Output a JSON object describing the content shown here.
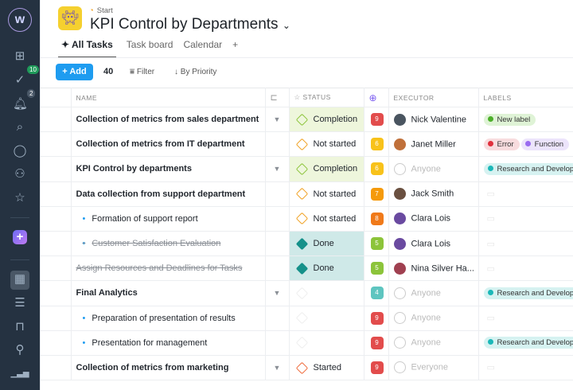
{
  "sidebar": {
    "logo": "w",
    "badges": {
      "tasks": "10",
      "notifications": "2"
    },
    "items": [
      "apps-icon",
      "tasks-icon",
      "bell-icon",
      "search-icon",
      "chat-icon",
      "users-icon",
      "star-icon",
      "plus-icon",
      "table-view-icon",
      "list-view-icon",
      "board-view-icon",
      "team-icon",
      "reports-icon"
    ]
  },
  "header": {
    "breadcrumb": "Start",
    "title": "KPI Control by Departments"
  },
  "tabs": [
    "All Tasks",
    "Task board",
    "Calendar",
    "+"
  ],
  "toolbar": {
    "add": "Add",
    "count": "40",
    "filter": "Filter",
    "sort": "By Priority"
  },
  "columns": {
    "name": "NAME",
    "status": "STATUS",
    "executor": "EXECUTOR",
    "labels": "LABELS"
  },
  "colors": {
    "accent": "#1e9cf0",
    "sidebar": "#253241"
  },
  "rows": [
    {
      "name": "Collection of metrics from sales department",
      "type": "parent",
      "expand": true,
      "status": "Completion",
      "priority": "9",
      "executor": "Nick Valentine",
      "labels": [
        {
          "text": "New label",
          "color": "#4caf2a",
          "bg": "#dff3d6"
        }
      ]
    },
    {
      "name": "Collection of metrics from IT department",
      "type": "parent",
      "status": "Not started",
      "priority": "6",
      "executor": "Janet Miller",
      "labels": [
        {
          "text": "Error",
          "color": "#e0303c",
          "bg": "#f8dcde"
        },
        {
          "text": "Function",
          "color": "#9a6cf0",
          "bg": "#ece4fb"
        }
      ]
    },
    {
      "name": "KPI Control by departments",
      "type": "parent",
      "expand": true,
      "status": "Completion",
      "priority": "6",
      "executor": "Anyone",
      "labels": [
        {
          "text": "Research and Development",
          "color": "#1bb8b8",
          "bg": "#d6f2f1"
        }
      ]
    },
    {
      "name": "Data collection from support department",
      "type": "parent",
      "status": "Not started",
      "priority": "7",
      "executor": "Jack Smith",
      "labels": []
    },
    {
      "name": "Formation of support report",
      "type": "sub",
      "status": "Not started",
      "priority": "8",
      "executor": "Clara Lois",
      "labels": []
    },
    {
      "name": "Customer Satisfaction Evaluation",
      "type": "sub-done",
      "status": "Done",
      "priority": "5",
      "executor": "Clara Lois",
      "labels": []
    },
    {
      "name": "Assign Resources and Deadlines for Tasks",
      "type": "done",
      "status": "Done",
      "priority": "5",
      "executor": "Nina Silver Ha...",
      "labels": []
    },
    {
      "name": "Final Analytics",
      "type": "parent",
      "expand": true,
      "status": "",
      "priority": "4",
      "executor": "Anyone",
      "labels": [
        {
          "text": "Research and Development",
          "color": "#1bb8b8",
          "bg": "#d6f2f1"
        }
      ]
    },
    {
      "name": "Preparation of presentation of results",
      "type": "sub",
      "status": "",
      "priority": "9",
      "executor": "Anyone",
      "labels": []
    },
    {
      "name": "Presentation for management",
      "type": "sub",
      "status": "",
      "priority": "9",
      "executor": "Anyone",
      "labels": [
        {
          "text": "Research and Development",
          "color": "#1bb8b8",
          "bg": "#d6f2f1"
        }
      ]
    },
    {
      "name": "Collection of metrics from marketing",
      "type": "parent",
      "expand": true,
      "status": "Started",
      "priority": "9",
      "executor": "Everyone",
      "labels": []
    }
  ]
}
